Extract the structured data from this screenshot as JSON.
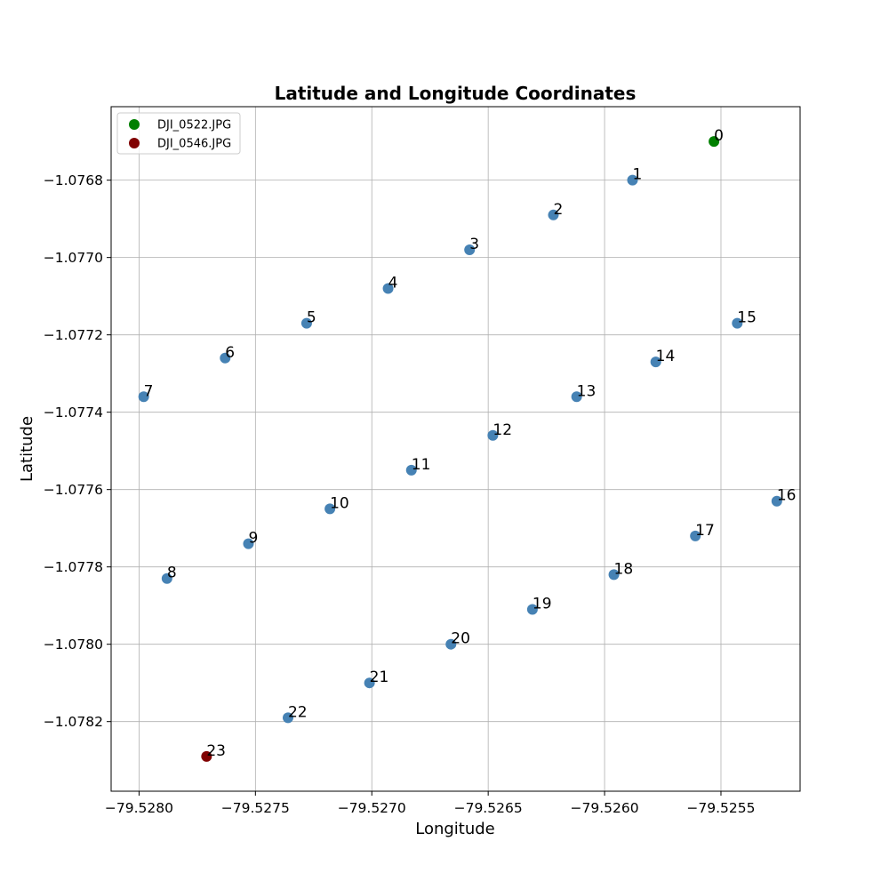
{
  "chart_data": {
    "type": "scatter",
    "title": "Latitude and Longitude Coordinates",
    "xlabel": "Longitude",
    "ylabel": "Latitude",
    "xlim": [
      -79.52812,
      -79.52516
    ],
    "ylim": [
      -1.07838,
      -1.07661
    ],
    "grid": true,
    "legend_position": "top-left",
    "x_ticks": [
      -79.528,
      -79.5275,
      -79.527,
      -79.5265,
      -79.526,
      -79.5255
    ],
    "x_tick_labels": [
      "−79.5280",
      "−79.5275",
      "−79.5270",
      "−79.5265",
      "−79.5260",
      "−79.5255"
    ],
    "y_ticks": [
      -1.0768,
      -1.077,
      -1.0772,
      -1.0774,
      -1.0776,
      -1.0778,
      -1.078,
      -1.0782
    ],
    "y_tick_labels": [
      "−1.0768",
      "−1.0770",
      "−1.0772",
      "−1.0774",
      "−1.0776",
      "−1.0778",
      "−1.0780",
      "−1.0782"
    ],
    "legend": [
      {
        "label": "DJI_0522.JPG",
        "color": "#008000"
      },
      {
        "label": "DJI_0546.JPG",
        "color": "#800000"
      }
    ],
    "default_color": "#4682b4",
    "points": [
      {
        "label": "0",
        "x": -79.52553,
        "y": -1.0767,
        "color": "#008000"
      },
      {
        "label": "1",
        "x": -79.52588,
        "y": -1.0768
      },
      {
        "label": "2",
        "x": -79.52622,
        "y": -1.07689
      },
      {
        "label": "3",
        "x": -79.52658,
        "y": -1.07698
      },
      {
        "label": "4",
        "x": -79.52693,
        "y": -1.07708
      },
      {
        "label": "5",
        "x": -79.52728,
        "y": -1.07717
      },
      {
        "label": "6",
        "x": -79.52763,
        "y": -1.07726
      },
      {
        "label": "7",
        "x": -79.52798,
        "y": -1.07736
      },
      {
        "label": "8",
        "x": -79.52788,
        "y": -1.07783
      },
      {
        "label": "9",
        "x": -79.52753,
        "y": -1.07774
      },
      {
        "label": "10",
        "x": -79.52718,
        "y": -1.07765
      },
      {
        "label": "11",
        "x": -79.52683,
        "y": -1.07755
      },
      {
        "label": "12",
        "x": -79.52648,
        "y": -1.07746
      },
      {
        "label": "13",
        "x": -79.52612,
        "y": -1.07736
      },
      {
        "label": "14",
        "x": -79.52578,
        "y": -1.07727
      },
      {
        "label": "15",
        "x": -79.52543,
        "y": -1.07717
      },
      {
        "label": "16",
        "x": -79.52526,
        "y": -1.07763
      },
      {
        "label": "17",
        "x": -79.52561,
        "y": -1.07772
      },
      {
        "label": "18",
        "x": -79.52596,
        "y": -1.07782
      },
      {
        "label": "19",
        "x": -79.52631,
        "y": -1.07791
      },
      {
        "label": "20",
        "x": -79.52666,
        "y": -1.078
      },
      {
        "label": "21",
        "x": -79.52701,
        "y": -1.0781
      },
      {
        "label": "22",
        "x": -79.52736,
        "y": -1.07819
      },
      {
        "label": "23",
        "x": -79.52771,
        "y": -1.07829,
        "color": "#800000"
      }
    ]
  }
}
